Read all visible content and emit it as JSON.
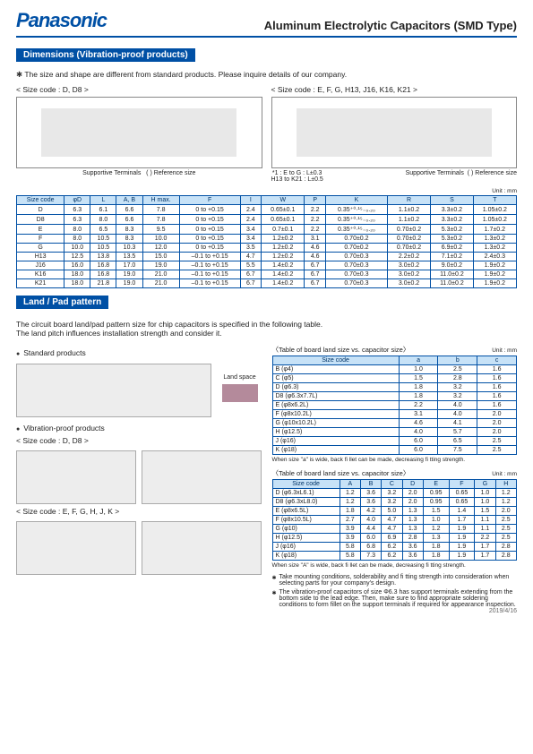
{
  "header": {
    "logo": "Panasonic",
    "title": "Aluminum Electrolytic Capacitors (SMD Type)"
  },
  "section1": {
    "bar": "Dimensions (Vibration-proof products)",
    "note": "The size and shape are different from standard products. Please inquire details of our company.",
    "diag_left_title": "< Size code : D, D8 >",
    "diag_right_title": "< Size code : E, F, G, H13, J16, K16, K21 >",
    "supportive": "Supportive Terminals",
    "ref_size": "( ) Reference size",
    "tol_note1": "*1 : E to G : L±0.3",
    "tol_note2": "H13 to K21 : L±0.5",
    "unit": "Unit : mm"
  },
  "dim_headers": [
    "Size code",
    "φD",
    "L",
    "A, B",
    "H max.",
    "F",
    "I",
    "W",
    "P",
    "K",
    "R",
    "S",
    "T"
  ],
  "dim_rows": [
    [
      "D",
      "6.3",
      "6.1",
      "6.6",
      "7.8",
      "0 to +0.15",
      "2.4",
      "0.65±0.1",
      "2.2",
      "0.35⁺⁰·¹⁵₋₀.₂₀",
      "1.1±0.2",
      "3.3±0.2",
      "1.05±0.2"
    ],
    [
      "D8",
      "6.3",
      "8.0",
      "6.6",
      "7.8",
      "0 to +0.15",
      "2.4",
      "0.65±0.1",
      "2.2",
      "0.35⁺⁰·¹⁵₋₀.₂₀",
      "1.1±0.2",
      "3.3±0.2",
      "1.05±0.2"
    ],
    [
      "E",
      "8.0",
      "6.5",
      "8.3",
      "9.5",
      "0 to +0.15",
      "3.4",
      "0.7±0.1",
      "2.2",
      "0.35⁺⁰·¹⁵₋₀.₂₀",
      "0.70±0.2",
      "5.3±0.2",
      "1.7±0.2"
    ],
    [
      "F",
      "8.0",
      "10.5",
      "8.3",
      "10.0",
      "0 to +0.15",
      "3.4",
      "1.2±0.2",
      "3.1",
      "0.70±0.2",
      "0.70±0.2",
      "5.3±0.2",
      "1.3±0.2"
    ],
    [
      "G",
      "10.0",
      "10.5",
      "10.3",
      "12.0",
      "0 to +0.15",
      "3.5",
      "1.2±0.2",
      "4.6",
      "0.70±0.2",
      "0.70±0.2",
      "6.9±0.2",
      "1.3±0.2"
    ],
    [
      "H13",
      "12.5",
      "13.8",
      "13.5",
      "15.0",
      "–0.1 to +0.15",
      "4.7",
      "1.2±0.2",
      "4.6",
      "0.70±0.3",
      "2.2±0.2",
      "7.1±0.2",
      "2.4±0.3"
    ],
    [
      "J16",
      "16.0",
      "16.8",
      "17.0",
      "19.0",
      "–0.1 to +0.15",
      "5.5",
      "1.4±0.2",
      "6.7",
      "0.70±0.3",
      "3.0±0.2",
      "9.0±0.2",
      "1.9±0.2"
    ],
    [
      "K16",
      "18.0",
      "16.8",
      "19.0",
      "21.0",
      "–0.1 to +0.15",
      "6.7",
      "1.4±0.2",
      "6.7",
      "0.70±0.3",
      "3.0±0.2",
      "11.0±0.2",
      "1.9±0.2"
    ],
    [
      "K21",
      "18.0",
      "21.8",
      "19.0",
      "21.0",
      "–0.1 to +0.15",
      "6.7",
      "1.4±0.2",
      "6.7",
      "0.70±0.3",
      "3.0±0.2",
      "11.0±0.2",
      "1.9±0.2"
    ]
  ],
  "section2": {
    "bar": "Land / Pad pattern",
    "desc1": "The circuit board land/pad pattern size for chip capacitors is specified in the following table.",
    "desc2": "The land pitch influences installation strength and consider it.",
    "std": "Standard products",
    "landspace": "Land space",
    "vib": "Vibration-proof products",
    "vib_dd8": "< Size code : D, D8 >",
    "vib_efghjk": "< Size code : E, F, G, H, J, K >"
  },
  "land_tbl1": {
    "title": "Table of board land size vs. capacitor size",
    "unit": "Unit : mm",
    "headers": [
      "Size code",
      "a",
      "b",
      "c"
    ],
    "rows": [
      [
        "B (φ4)",
        "1.0",
        "2.5",
        "1.6"
      ],
      [
        "C (φ5)",
        "1.5",
        "2.8",
        "1.6"
      ],
      [
        "D (φ6.3)",
        "1.8",
        "3.2",
        "1.6"
      ],
      [
        "D8 (φ6.3x7.7L)",
        "1.8",
        "3.2",
        "1.6"
      ],
      [
        "E (φ8x6.2L)",
        "2.2",
        "4.0",
        "1.6"
      ],
      [
        "F (φ8x10.2L)",
        "3.1",
        "4.0",
        "2.0"
      ],
      [
        "G (φ10x10.2L)",
        "4.6",
        "4.1",
        "2.0"
      ],
      [
        "H (φ12.5)",
        "4.0",
        "5.7",
        "2.0"
      ],
      [
        "J (φ16)",
        "6.0",
        "6.5",
        "2.5"
      ],
      [
        "K (φ18)",
        "6.0",
        "7.5",
        "2.5"
      ]
    ],
    "footnote": "When size \"a\" is wide, back fi llet can be made, decreasing fi tting strength."
  },
  "land_tbl2": {
    "title": "Table of board land size vs. capacitor size",
    "unit": "Unit : mm",
    "headers": [
      "Size code",
      "A",
      "B",
      "C",
      "D",
      "E",
      "F",
      "G",
      "H"
    ],
    "rows": [
      [
        "D (φ6.3xL6.1)",
        "1.2",
        "3.6",
        "3.2",
        "2.0",
        "0.95",
        "0.65",
        "1.0",
        "1.2"
      ],
      [
        "D8 (φ6.3xL8.0)",
        "1.2",
        "3.6",
        "3.2",
        "2.0",
        "0.95",
        "0.65",
        "1.0",
        "1.2"
      ],
      [
        "E (φ8x6.5L)",
        "1.8",
        "4.2",
        "5.0",
        "1.3",
        "1.5",
        "1.4",
        "1.5",
        "2.0"
      ],
      [
        "F (φ8x10.5L)",
        "2.7",
        "4.0",
        "4.7",
        "1.3",
        "1.0",
        "1.7",
        "1.1",
        "2.5"
      ],
      [
        "G (φ10)",
        "3.9",
        "4.4",
        "4.7",
        "1.3",
        "1.2",
        "1.9",
        "1.1",
        "2.5"
      ],
      [
        "H (φ12.5)",
        "3.9",
        "6.0",
        "6.9",
        "2.8",
        "1.3",
        "1.9",
        "2.2",
        "2.5"
      ],
      [
        "J (φ16)",
        "5.8",
        "6.8",
        "6.2",
        "3.6",
        "1.8",
        "1.9",
        "1.7",
        "2.8"
      ],
      [
        "K (φ18)",
        "5.8",
        "7.3",
        "6.2",
        "3.6",
        "1.8",
        "1.9",
        "1.7",
        "2.8"
      ]
    ],
    "footnote": "When size \"A\" is wide, back fi llet can be made, decreasing fi tting strength."
  },
  "notes": [
    "Take mounting conditions, solderability and fi tting strength into consideration when selecting parts for your company's design.",
    "The vibration-proof capacitors of size Φ6.3 has support terminals extending from the bottom side to the lead edge. Then, make sure to find appropriate soldering conditions to form fillet on the support terminals if required for appearance inspection."
  ],
  "date": "2019/4/16"
}
